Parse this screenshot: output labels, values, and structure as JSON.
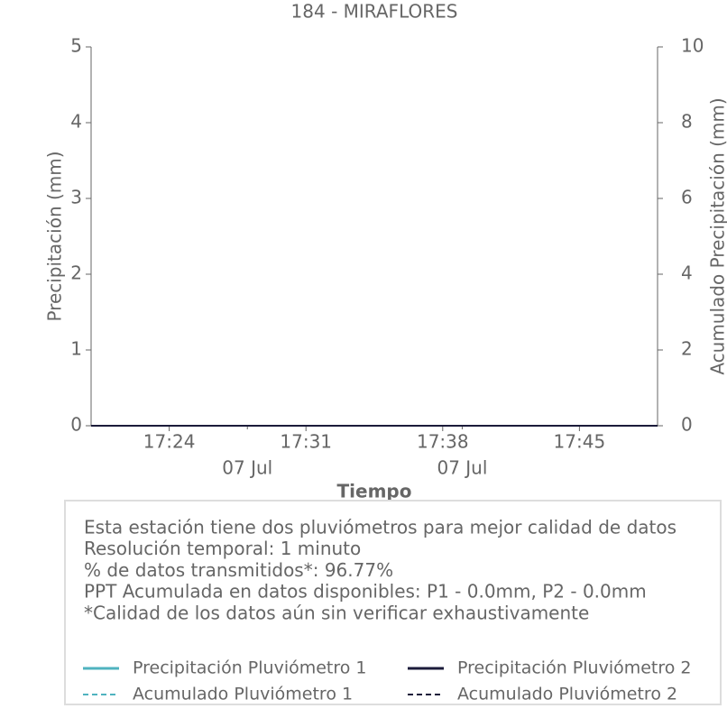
{
  "chart_data": {
    "type": "line",
    "title": "184 - MIRAFLORES",
    "xlabel": "Tiempo",
    "ylabel": "Precipitación (mm)",
    "y2label": "Acumulado Precipitación (mm)",
    "x": [
      "17:20",
      "17:21",
      "17:22",
      "17:23",
      "17:24",
      "17:25",
      "17:26",
      "17:27",
      "17:28",
      "17:29",
      "17:30",
      "17:31",
      "17:32",
      "17:33",
      "17:34",
      "17:35",
      "17:36",
      "17:37",
      "17:38",
      "17:39",
      "17:40",
      "17:41",
      "17:42",
      "17:43",
      "17:44",
      "17:45",
      "17:46",
      "17:47",
      "17:48",
      "17:49"
    ],
    "xlim": [
      "17:20",
      "17:49"
    ],
    "xticks": [
      "17:24",
      "17:31",
      "17:38",
      "17:45"
    ],
    "date_labels": [
      {
        "value": "17:28",
        "label": "07 Jul"
      },
      {
        "value": "17:39",
        "label": "07 Jul"
      }
    ],
    "ylim": [
      0,
      5
    ],
    "yticks": [
      0,
      1,
      2,
      3,
      4,
      5
    ],
    "y2lim": [
      0,
      10
    ],
    "y2ticks": [
      0,
      2,
      4,
      6,
      8,
      10
    ],
    "series": [
      {
        "name": "Precipitación Pluviómetro 1",
        "color": "#4fb3bf",
        "dashed": false,
        "values": [
          0,
          0,
          0,
          0,
          0,
          0,
          0,
          0,
          0,
          0,
          0,
          0,
          0,
          0,
          0,
          0,
          0,
          0,
          0,
          0,
          0,
          0,
          0,
          0,
          0,
          0,
          0,
          0,
          0,
          0
        ]
      },
      {
        "name": "Precipitación Pluviómetro 2",
        "color": "#1b1b3a",
        "dashed": false,
        "values": [
          0,
          0,
          0,
          0,
          0,
          0,
          0,
          0,
          0,
          0,
          0,
          0,
          0,
          0,
          0,
          0,
          0,
          0,
          0,
          0,
          0,
          0,
          0,
          0,
          0,
          0,
          0,
          0,
          0,
          0
        ]
      },
      {
        "name": "Acumulado Pluviómetro 1",
        "color": "#4fb3bf",
        "dashed": true,
        "axis": "y2",
        "values": [
          0,
          0,
          0,
          0,
          0,
          0,
          0,
          0,
          0,
          0,
          0,
          0,
          0,
          0,
          0,
          0,
          0,
          0,
          0,
          0,
          0,
          0,
          0,
          0,
          0,
          0,
          0,
          0,
          0,
          0
        ]
      },
      {
        "name": "Acumulado Pluviómetro 2",
        "color": "#1b1b3a",
        "dashed": true,
        "axis": "y2",
        "values": [
          0,
          0,
          0,
          0,
          0,
          0,
          0,
          0,
          0,
          0,
          0,
          0,
          0,
          0,
          0,
          0,
          0,
          0,
          0,
          0,
          0,
          0,
          0,
          0,
          0,
          0,
          0,
          0,
          0,
          0
        ]
      }
    ],
    "notes": [
      "Esta estación tiene dos pluviómetros para mejor calidad de datos",
      "Resolución temporal: 1 minuto",
      "% de datos transmitidos*: 96.77%",
      "PPT Acumulada en datos disponibles: P1 - 0.0mm, P2 - 0.0mm",
      "*Calidad de los datos aún sin verificar exhaustivamente"
    ]
  }
}
